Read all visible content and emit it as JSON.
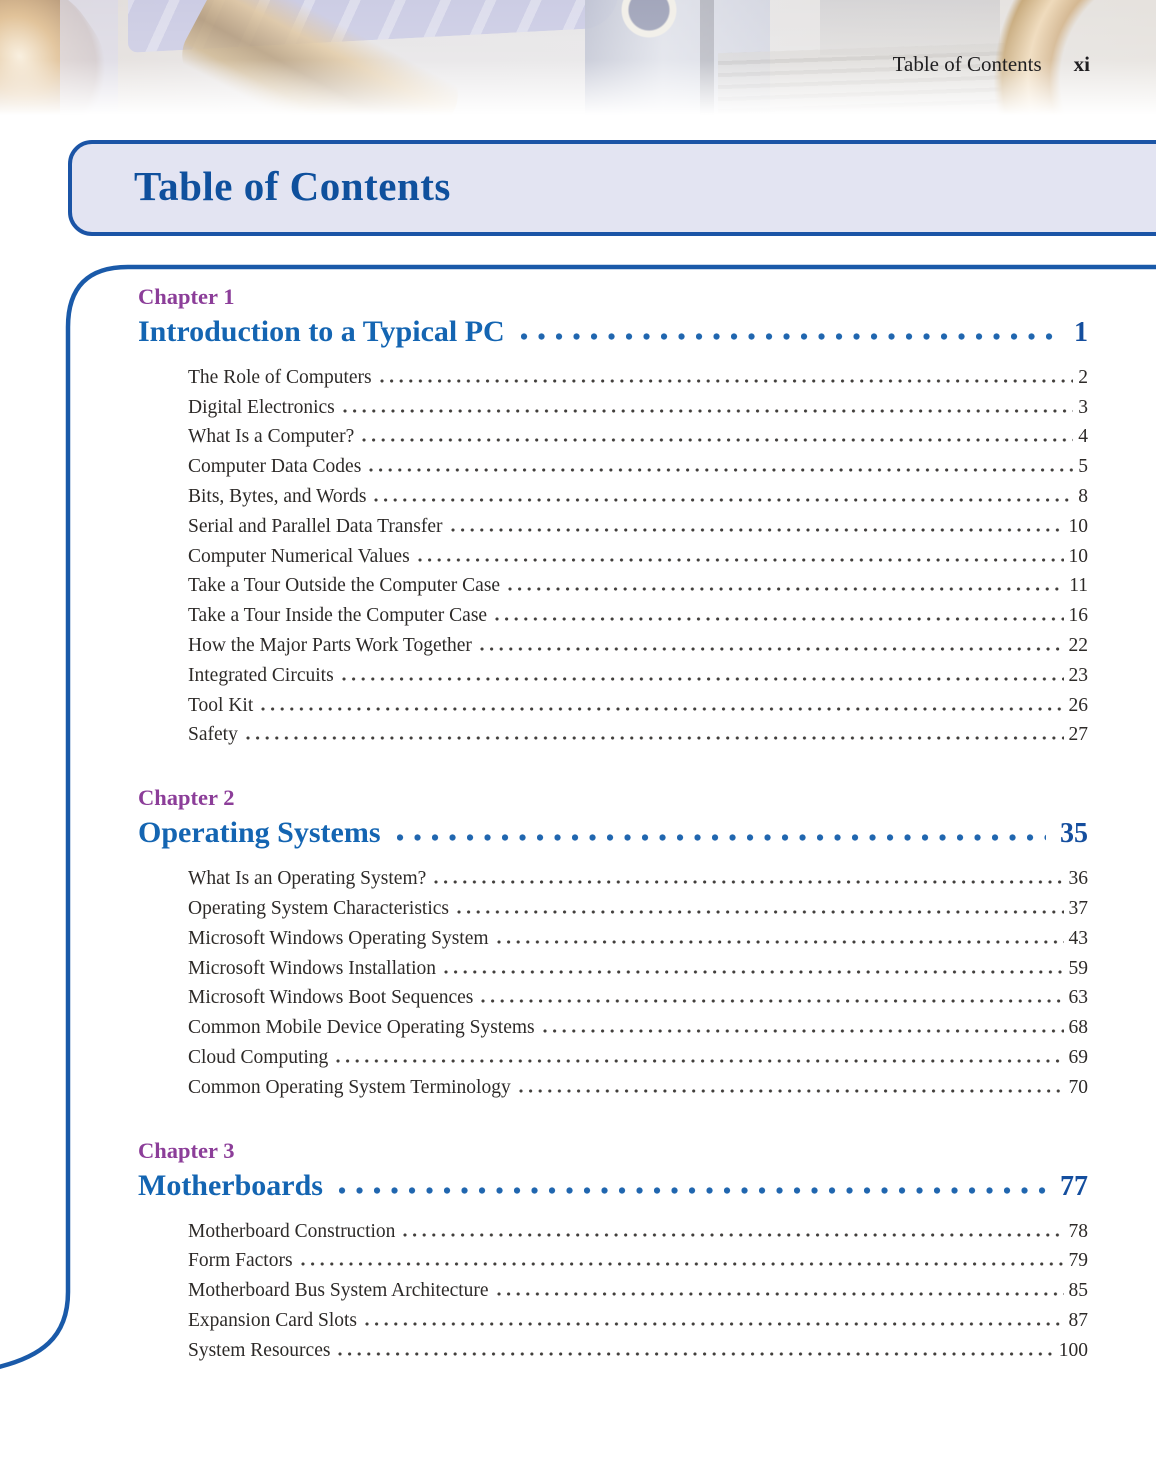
{
  "header": {
    "section": "Table of Contents",
    "page_number": "xi"
  },
  "title_box": {
    "title": "Table of Contents"
  },
  "chapters": [
    {
      "label": "Chapter 1",
      "title": "Introduction to a Typical PC",
      "page": "1",
      "entries": [
        {
          "title": "The Role of Computers",
          "page": "2"
        },
        {
          "title": "Digital Electronics",
          "page": "3"
        },
        {
          "title": "What Is a Computer?",
          "page": "4"
        },
        {
          "title": "Computer Data Codes",
          "page": "5"
        },
        {
          "title": "Bits, Bytes, and Words",
          "page": "8"
        },
        {
          "title": "Serial and Parallel Data Transfer",
          "page": "10"
        },
        {
          "title": "Computer Numerical Values",
          "page": "10"
        },
        {
          "title": "Take a Tour Outside the Computer Case",
          "page": "11"
        },
        {
          "title": "Take a Tour Inside the Computer Case",
          "page": "16"
        },
        {
          "title": "How the Major Parts Work Together",
          "page": "22"
        },
        {
          "title": "Integrated Circuits",
          "page": "23"
        },
        {
          "title": "Tool Kit",
          "page": "26"
        },
        {
          "title": "Safety",
          "page": "27"
        }
      ]
    },
    {
      "label": "Chapter 2",
      "title": "Operating Systems",
      "page": "35",
      "entries": [
        {
          "title": "What Is an Operating System?",
          "page": "36"
        },
        {
          "title": "Operating System Characteristics",
          "page": "37"
        },
        {
          "title": "Microsoft Windows Operating System",
          "page": "43"
        },
        {
          "title": "Microsoft Windows Installation",
          "page": "59"
        },
        {
          "title": "Microsoft Windows Boot Sequences",
          "page": "63"
        },
        {
          "title": "Common Mobile Device Operating Systems",
          "page": "68"
        },
        {
          "title": "Cloud Computing",
          "page": "69"
        },
        {
          "title": "Common Operating System Terminology",
          "page": "70"
        }
      ]
    },
    {
      "label": "Chapter 3",
      "title": "Motherboards",
      "page": "77",
      "entries": [
        {
          "title": "Motherboard Construction",
          "page": "78"
        },
        {
          "title": "Form Factors",
          "page": "79"
        },
        {
          "title": "Motherboard Bus System Architecture",
          "page": "85"
        },
        {
          "title": "Expansion Card Slots",
          "page": "87"
        },
        {
          "title": "System Resources",
          "page": "100"
        }
      ]
    }
  ],
  "colors": {
    "accent_blue": "#1b54a6",
    "title_bg": "#e3e4f2",
    "title_blue": "#0f509d",
    "heading_blue": "#1465b2",
    "pagenum_blue": "#144e9e",
    "chapter_purple": "#8c3e99",
    "body_text": "#2d2a28",
    "leader_dot_blue": "#2066af",
    "leader_dot_dark": "#413e3b"
  }
}
